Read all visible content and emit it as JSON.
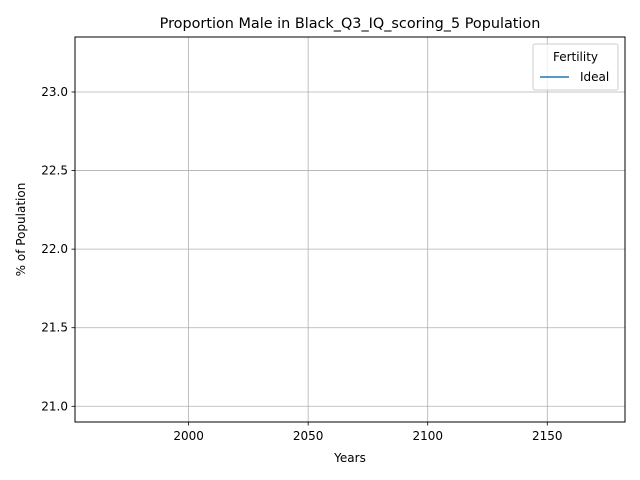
{
  "chart_data": {
    "type": "line",
    "title": "Proportion Male in Black_Q3_IQ_scoring_5 Population",
    "xlabel": "Years",
    "ylabel": "% of Population",
    "xlim": [
      1952.5,
      2182.5
    ],
    "ylim": [
      20.9,
      23.35
    ],
    "xticks": [
      2000,
      2050,
      2100,
      2150
    ],
    "xtick_labels": [
      "2000",
      "2050",
      "2100",
      "2150"
    ],
    "yticks": [
      21.0,
      21.5,
      22.0,
      22.5,
      23.0
    ],
    "ytick_labels": [
      "21.0",
      "21.5",
      "22.0",
      "22.5",
      "23.0"
    ],
    "grid": true,
    "legend": {
      "title": "Fertility",
      "placement": "top-right"
    },
    "series": [
      {
        "name": "Ideal",
        "color": "#1f77b4",
        "x": [],
        "y": []
      }
    ]
  }
}
